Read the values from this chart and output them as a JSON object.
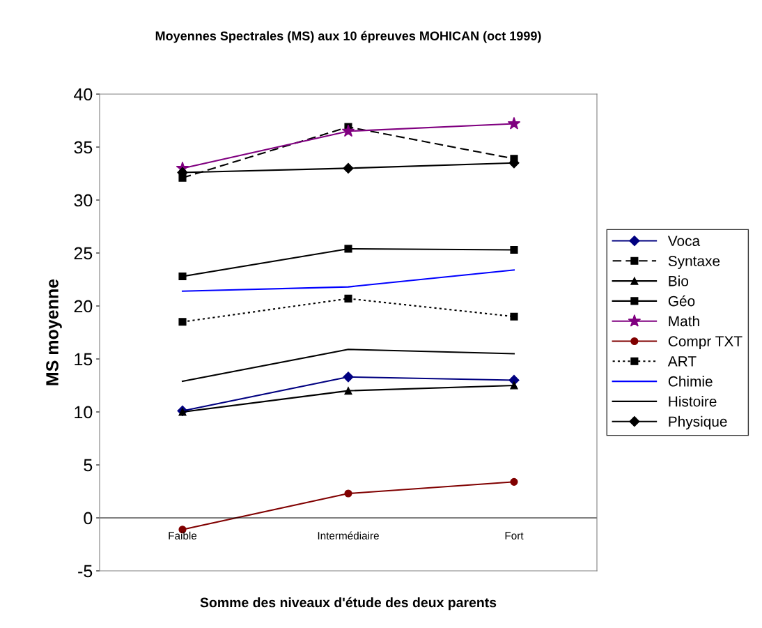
{
  "chart_data": {
    "type": "line",
    "title": "Moyennes Spectrales (MS) aux 10 épreuves MOHICAN (oct 1999)",
    "xlabel": "Somme des niveaux d'étude des deux parents",
    "ylabel": "MS moyenne",
    "categories": [
      "Faible",
      "Intermédiaire",
      "Fort"
    ],
    "series": [
      {
        "name": "Voca",
        "color": "#000080",
        "marker": "diamond",
        "line_style": "solid",
        "values": [
          10.1,
          13.3,
          13.0
        ]
      },
      {
        "name": "Syntaxe",
        "color": "#000000",
        "marker": "square",
        "line_style": "dashed",
        "values": [
          32.1,
          36.9,
          33.9
        ]
      },
      {
        "name": "Bio",
        "color": "#000000",
        "marker": "triangle",
        "line_style": "solid",
        "values": [
          10.0,
          12.0,
          12.5
        ]
      },
      {
        "name": "Géo",
        "color": "#000000",
        "marker": "square",
        "line_style": "solid",
        "values": [
          22.8,
          25.4,
          25.3
        ]
      },
      {
        "name": "Math",
        "color": "#800080",
        "marker": "star",
        "line_style": "solid",
        "values": [
          33.0,
          36.5,
          37.2
        ]
      },
      {
        "name": "Compr TXT",
        "color": "#800000",
        "marker": "circle",
        "line_style": "solid",
        "values": [
          -1.1,
          2.3,
          3.4
        ]
      },
      {
        "name": "ART",
        "color": "#000000",
        "marker": "square",
        "line_style": "dotted",
        "values": [
          18.5,
          20.7,
          19.0
        ]
      },
      {
        "name": "Chimie",
        "color": "#0000ff",
        "marker": "none",
        "line_style": "solid",
        "values": [
          21.4,
          21.8,
          23.4
        ]
      },
      {
        "name": "Histoire",
        "color": "#000000",
        "marker": "none",
        "line_style": "solid",
        "values": [
          12.9,
          15.9,
          15.5
        ]
      },
      {
        "name": "Physique",
        "color": "#000000",
        "marker": "diamond",
        "line_style": "solid",
        "values": [
          32.6,
          33.0,
          33.5
        ]
      }
    ],
    "ylim": [
      -5,
      40
    ],
    "yticks": [
      {
        "value": -5,
        "label": "-5"
      },
      0,
      5,
      10,
      15,
      20,
      25,
      30,
      35,
      40
    ],
    "grid": false,
    "legend": "right"
  }
}
